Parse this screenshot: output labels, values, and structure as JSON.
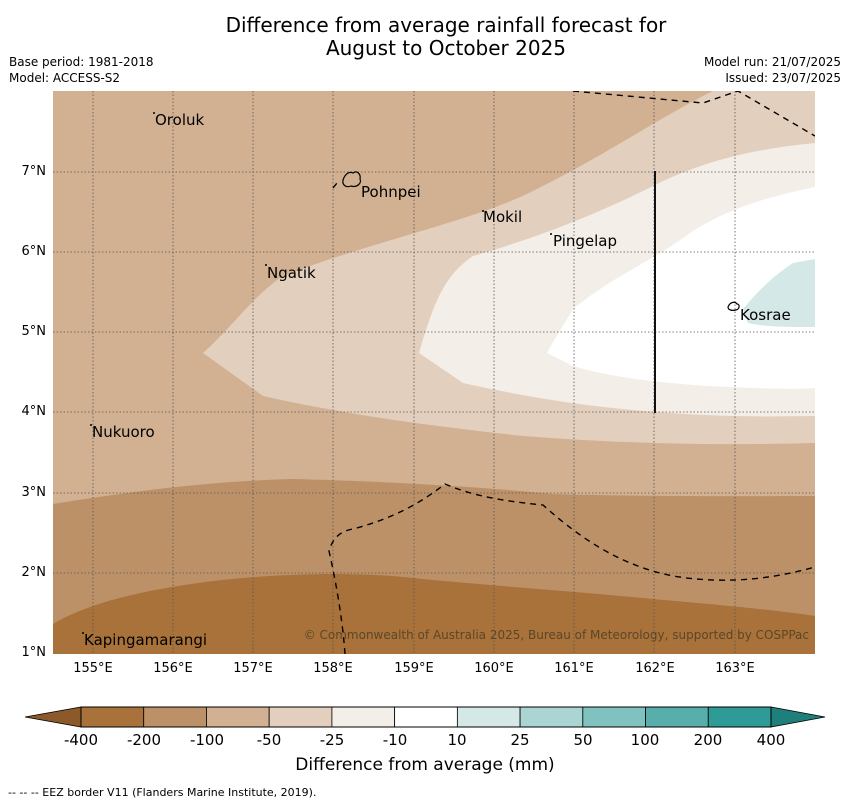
{
  "title_line1": "Difference from average rainfall forecast for",
  "title_line2": "August to October 2025",
  "meta_left": {
    "base_period": "Base period: 1981-2018",
    "model": "Model: ACCESS-S2"
  },
  "meta_right": {
    "model_run": "Model run: 21/07/2025",
    "issued": "Issued: 23/07/2025"
  },
  "lat_labels": [
    "7°N",
    "6°N",
    "5°N",
    "4°N",
    "3°N",
    "2°N",
    "1°N"
  ],
  "lon_labels": [
    "155°E",
    "156°E",
    "157°E",
    "158°E",
    "159°E",
    "160°E",
    "161°E",
    "162°E",
    "163°E"
  ],
  "places": [
    "Oroluk",
    "Pohnpei",
    "Mokil",
    "Pingelap",
    "Ngatik",
    "Kosrae",
    "Nukuoro",
    "Kapingamarangi"
  ],
  "copyright": "© Commonwealth of Australia 2025, Bureau of Meteorology, supported by COSPPac",
  "colorbar": {
    "labels": [
      "-400",
      "-200",
      "-100",
      "-50",
      "-25",
      "-10",
      "10",
      "25",
      "50",
      "100",
      "200",
      "400"
    ],
    "colors": [
      "#a9723a",
      "#bd9168",
      "#d1b192",
      "#e3cfbd",
      "#f3eee8",
      "#ffffff",
      "#d4e8e7",
      "#aad5d3",
      "#80c2bf",
      "#57aeab",
      "#2e9b97"
    ],
    "title": "Difference from average (mm)"
  },
  "footnote": "--  --  -- EEZ border V11 (Flanders Marine Institute, 2019)."
}
